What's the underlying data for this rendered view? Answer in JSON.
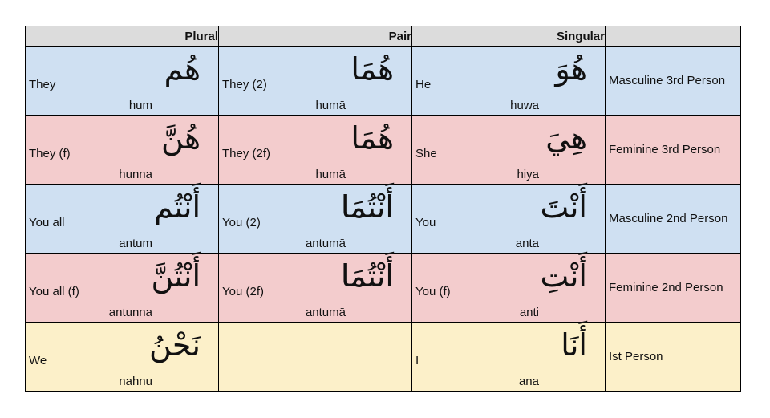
{
  "headers": {
    "plural": "Plural",
    "pair": "Pair",
    "singular": "Singular",
    "category": ""
  },
  "rows": [
    {
      "plural": {
        "ar": "هُم",
        "en": "They",
        "tr": "hum"
      },
      "pair": {
        "ar": "هُمَا",
        "en": "They (2)",
        "tr": "humā"
      },
      "singular": {
        "ar": "هُوَ",
        "en": "He",
        "tr": "huwa"
      },
      "label": "Masculine 3rd Person"
    },
    {
      "plural": {
        "ar": "هُنَّ",
        "en": "They (f)",
        "tr": "hunna"
      },
      "pair": {
        "ar": "هُمَا",
        "en": "They (2f)",
        "tr": "humā"
      },
      "singular": {
        "ar": "هِيَ",
        "en": "She",
        "tr": "hiya"
      },
      "label": "Feminine 3rd Person"
    },
    {
      "plural": {
        "ar": "أَنْتُم",
        "en": "You all",
        "tr": "antum"
      },
      "pair": {
        "ar": "أَنْتُمَا",
        "en": "You (2)",
        "tr": "antumā"
      },
      "singular": {
        "ar": "أَنْتَ",
        "en": "You",
        "tr": "anta"
      },
      "label": "Masculine 2nd Person"
    },
    {
      "plural": {
        "ar": "أَنْتُنَّ",
        "en": "You all (f)",
        "tr": "antunna"
      },
      "pair": {
        "ar": "أَنْتُمَا",
        "en": "You (2f)",
        "tr": "antumā"
      },
      "singular": {
        "ar": "أَنْتِ",
        "en": "You (f)",
        "tr": "anti"
      },
      "label": "Feminine 2nd Person"
    },
    {
      "plural": {
        "ar": "نَحْنُ",
        "en": "We",
        "tr": "nahnu"
      },
      "pair": {
        "ar": "",
        "en": "",
        "tr": ""
      },
      "singular": {
        "ar": "أَنَا",
        "en": "I",
        "tr": "ana"
      },
      "label": "Ist Person"
    }
  ]
}
